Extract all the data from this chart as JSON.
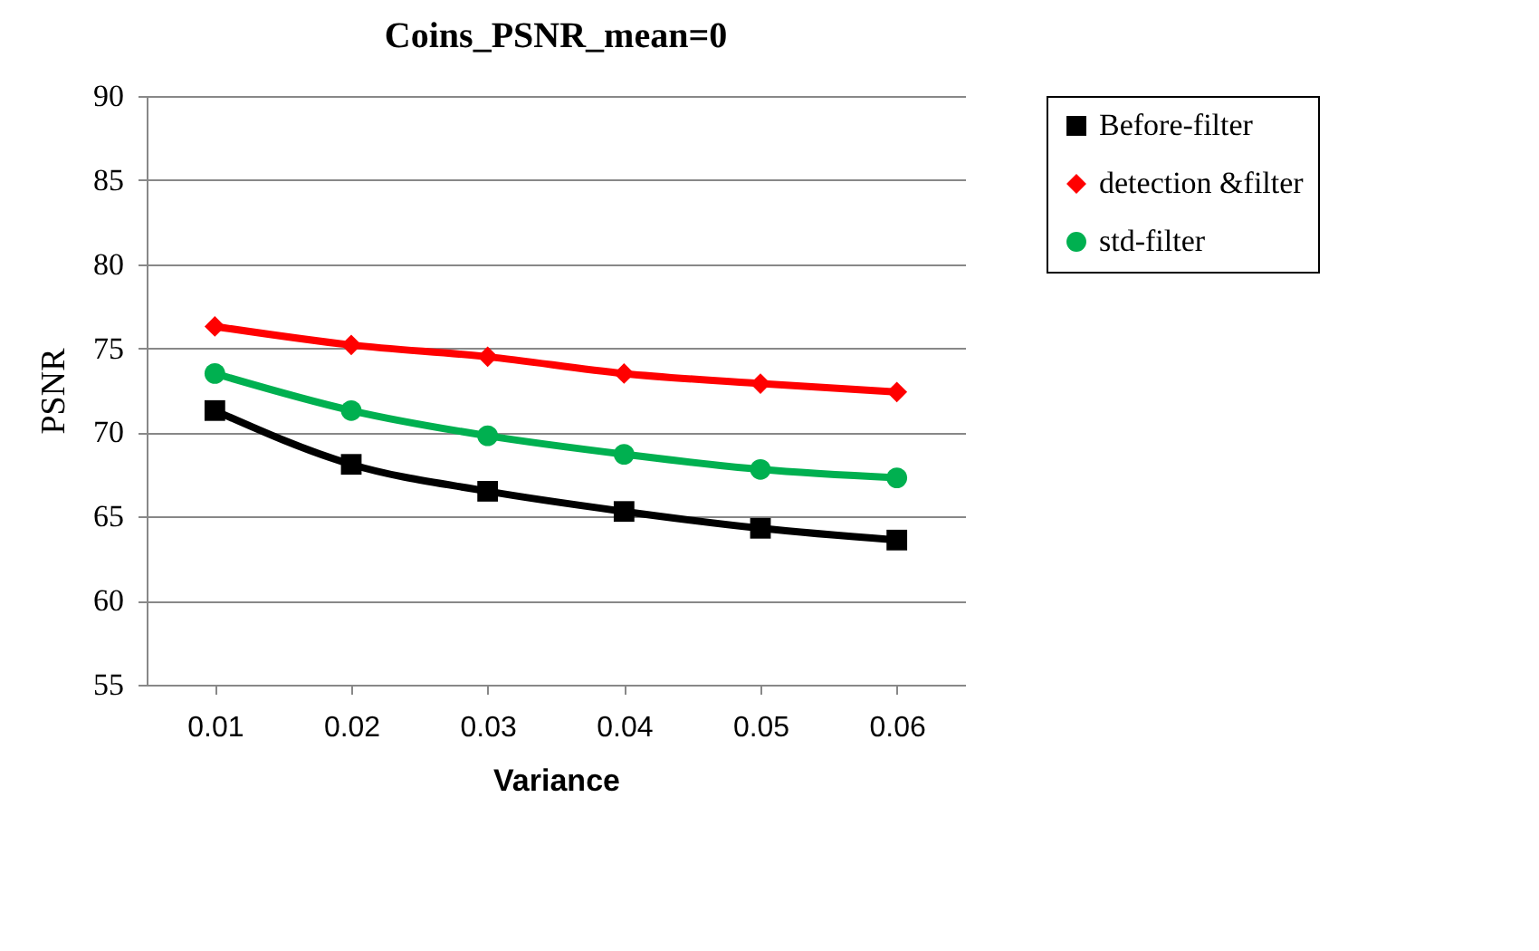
{
  "chart_data": {
    "type": "line",
    "title": "Coins_PSNR_mean=0",
    "xlabel": "Variance",
    "ylabel": "PSNR",
    "categories": [
      "0.01",
      "0.02",
      "0.03",
      "0.04",
      "0.05",
      "0.06"
    ],
    "series": [
      {
        "name": "Before-filter",
        "color": "#000000",
        "marker": "square",
        "values": [
          71.3,
          68.1,
          66.5,
          65.3,
          64.3,
          63.6
        ]
      },
      {
        "name": "detection &filter",
        "color": "#ff0000",
        "marker": "diamond",
        "values": [
          76.3,
          75.2,
          74.5,
          73.5,
          72.9,
          72.4
        ]
      },
      {
        "name": "std-filter",
        "color": "#00b050",
        "marker": "circle",
        "values": [
          73.5,
          71.3,
          69.8,
          68.7,
          67.8,
          67.3
        ]
      }
    ],
    "ylim": [
      55,
      90
    ],
    "yticks": [
      55,
      60,
      65,
      70,
      75,
      80,
      85,
      90
    ],
    "grid": "y",
    "legend": "right"
  }
}
